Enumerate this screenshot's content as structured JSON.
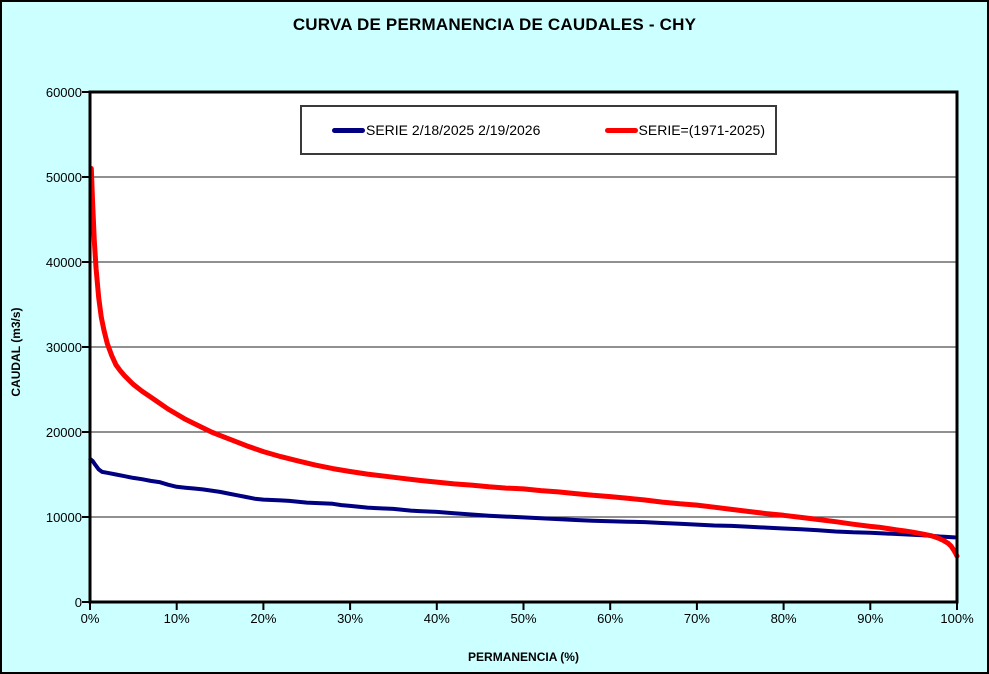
{
  "chart_data": {
    "type": "line",
    "title": "CURVA DE PERMANENCIA DE CAUDALES - CHY",
    "xlabel": "PERMANENCIA (%)",
    "ylabel": "CAUDAL (m3/s)",
    "xlim": [
      0,
      100
    ],
    "ylim": [
      0,
      60000
    ],
    "grid": "horizontal",
    "legend_position": "top-center-inside",
    "x_ticks": [
      {
        "v": 0,
        "label": "0%"
      },
      {
        "v": 10,
        "label": "10%"
      },
      {
        "v": 20,
        "label": "20%"
      },
      {
        "v": 30,
        "label": "30%"
      },
      {
        "v": 40,
        "label": "40%"
      },
      {
        "v": 50,
        "label": "50%"
      },
      {
        "v": 60,
        "label": "60%"
      },
      {
        "v": 70,
        "label": "70%"
      },
      {
        "v": 80,
        "label": "80%"
      },
      {
        "v": 90,
        "label": "90%"
      },
      {
        "v": 100,
        "label": "100%"
      }
    ],
    "y_ticks": [
      {
        "v": 0,
        "label": "0"
      },
      {
        "v": 10000,
        "label": "10000"
      },
      {
        "v": 20000,
        "label": "20000"
      },
      {
        "v": 30000,
        "label": "30000"
      },
      {
        "v": 40000,
        "label": "40000"
      },
      {
        "v": 50000,
        "label": "50000"
      },
      {
        "v": 60000,
        "label": "60000"
      }
    ],
    "colors": {
      "background": "#CCFFFF",
      "plot_background": "#FFFFFF",
      "gridline": "#4d4d4d",
      "axis": "#000000",
      "series_current": "#000080",
      "series_historic": "#FF0000"
    },
    "series": [
      {
        "name": "SERIE 2/18/2025 2/19/2026",
        "color": "#000080",
        "stroke_width": 4,
        "points": [
          [
            0.05,
            16800
          ],
          [
            0.3,
            16600
          ],
          [
            0.6,
            16150
          ],
          [
            1,
            15600
          ],
          [
            1.4,
            15300
          ],
          [
            2,
            15200
          ],
          [
            3,
            15000
          ],
          [
            4,
            14800
          ],
          [
            5,
            14600
          ],
          [
            6,
            14450
          ],
          [
            7,
            14250
          ],
          [
            8,
            14100
          ],
          [
            9,
            13800
          ],
          [
            10,
            13550
          ],
          [
            11,
            13450
          ],
          [
            12,
            13350
          ],
          [
            13,
            13250
          ],
          [
            14,
            13100
          ],
          [
            15,
            12950
          ],
          [
            16,
            12750
          ],
          [
            17,
            12550
          ],
          [
            18,
            12350
          ],
          [
            19,
            12150
          ],
          [
            20,
            12050
          ],
          [
            21,
            12000
          ],
          [
            22,
            11950
          ],
          [
            23,
            11900
          ],
          [
            24,
            11800
          ],
          [
            25,
            11700
          ],
          [
            26,
            11650
          ],
          [
            27,
            11600
          ],
          [
            28,
            11550
          ],
          [
            29,
            11400
          ],
          [
            30,
            11300
          ],
          [
            31,
            11200
          ],
          [
            32,
            11100
          ],
          [
            33,
            11050
          ],
          [
            34,
            11000
          ],
          [
            35,
            10950
          ],
          [
            36,
            10850
          ],
          [
            37,
            10750
          ],
          [
            38,
            10700
          ],
          [
            39,
            10650
          ],
          [
            40,
            10600
          ],
          [
            42,
            10450
          ],
          [
            44,
            10300
          ],
          [
            46,
            10150
          ],
          [
            48,
            10050
          ],
          [
            50,
            9950
          ],
          [
            52,
            9850
          ],
          [
            54,
            9750
          ],
          [
            56,
            9650
          ],
          [
            58,
            9550
          ],
          [
            60,
            9500
          ],
          [
            62,
            9450
          ],
          [
            64,
            9400
          ],
          [
            66,
            9300
          ],
          [
            68,
            9200
          ],
          [
            70,
            9100
          ],
          [
            72,
            9000
          ],
          [
            74,
            8950
          ],
          [
            76,
            8850
          ],
          [
            78,
            8750
          ],
          [
            80,
            8650
          ],
          [
            82,
            8550
          ],
          [
            84,
            8450
          ],
          [
            86,
            8300
          ],
          [
            88,
            8200
          ],
          [
            90,
            8150
          ],
          [
            92,
            8050
          ],
          [
            94,
            7950
          ],
          [
            96,
            7850
          ],
          [
            97,
            7800
          ],
          [
            98,
            7700
          ],
          [
            99,
            7650
          ],
          [
            99.7,
            7600
          ]
        ]
      },
      {
        "name": "SERIE=(1971-2025)",
        "color": "#FF0000",
        "stroke_width": 5,
        "points": [
          [
            0.15,
            51000
          ],
          [
            0.3,
            47000
          ],
          [
            0.5,
            42500
          ],
          [
            0.7,
            39200
          ],
          [
            1,
            35800
          ],
          [
            1.3,
            33500
          ],
          [
            1.6,
            32000
          ],
          [
            2,
            30400
          ],
          [
            2.5,
            29000
          ],
          [
            3,
            27900
          ],
          [
            3.5,
            27200
          ],
          [
            4,
            26600
          ],
          [
            5,
            25600
          ],
          [
            6,
            24800
          ],
          [
            7,
            24100
          ],
          [
            8,
            23400
          ],
          [
            9,
            22700
          ],
          [
            10,
            22100
          ],
          [
            11,
            21500
          ],
          [
            12,
            21000
          ],
          [
            13,
            20500
          ],
          [
            14,
            20000
          ],
          [
            15,
            19600
          ],
          [
            16,
            19200
          ],
          [
            17,
            18800
          ],
          [
            18,
            18400
          ],
          [
            19,
            18050
          ],
          [
            20,
            17700
          ],
          [
            22,
            17100
          ],
          [
            24,
            16600
          ],
          [
            26,
            16100
          ],
          [
            28,
            15700
          ],
          [
            30,
            15350
          ],
          [
            32,
            15050
          ],
          [
            34,
            14800
          ],
          [
            36,
            14550
          ],
          [
            38,
            14300
          ],
          [
            40,
            14100
          ],
          [
            42,
            13900
          ],
          [
            44,
            13750
          ],
          [
            46,
            13550
          ],
          [
            48,
            13400
          ],
          [
            50,
            13300
          ],
          [
            52,
            13100
          ],
          [
            54,
            12950
          ],
          [
            56,
            12750
          ],
          [
            58,
            12550
          ],
          [
            60,
            12400
          ],
          [
            62,
            12200
          ],
          [
            64,
            12000
          ],
          [
            66,
            11750
          ],
          [
            68,
            11550
          ],
          [
            70,
            11400
          ],
          [
            72,
            11150
          ],
          [
            74,
            10900
          ],
          [
            76,
            10650
          ],
          [
            78,
            10400
          ],
          [
            80,
            10200
          ],
          [
            82,
            9950
          ],
          [
            84,
            9700
          ],
          [
            86,
            9450
          ],
          [
            88,
            9150
          ],
          [
            90,
            8900
          ],
          [
            91,
            8800
          ],
          [
            92,
            8650
          ],
          [
            93,
            8500
          ],
          [
            94,
            8350
          ],
          [
            95,
            8200
          ],
          [
            96,
            8000
          ],
          [
            97,
            7800
          ],
          [
            97.5,
            7650
          ],
          [
            98,
            7450
          ],
          [
            98.5,
            7200
          ],
          [
            99,
            6900
          ],
          [
            99.3,
            6600
          ],
          [
            99.6,
            6150
          ],
          [
            99.8,
            5800
          ],
          [
            100,
            5400
          ]
        ]
      }
    ]
  }
}
